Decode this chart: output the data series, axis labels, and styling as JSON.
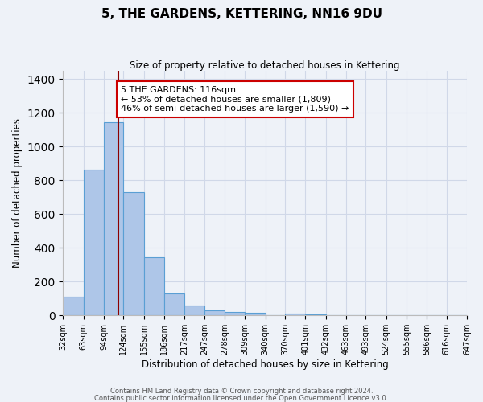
{
  "title": "5, THE GARDENS, KETTERING, NN16 9DU",
  "subtitle": "Size of property relative to detached houses in Kettering",
  "xlabel": "Distribution of detached houses by size in Kettering",
  "ylabel": "Number of detached properties",
  "bin_labels": [
    "32sqm",
    "63sqm",
    "94sqm",
    "124sqm",
    "155sqm",
    "186sqm",
    "217sqm",
    "247sqm",
    "278sqm",
    "309sqm",
    "340sqm",
    "370sqm",
    "401sqm",
    "432sqm",
    "463sqm",
    "493sqm",
    "524sqm",
    "555sqm",
    "586sqm",
    "616sqm",
    "647sqm"
  ],
  "bin_edges": [
    32,
    63,
    94,
    124,
    155,
    186,
    217,
    247,
    278,
    309,
    340,
    370,
    401,
    432,
    463,
    493,
    524,
    555,
    586,
    616,
    647
  ],
  "bar_heights": [
    110,
    865,
    1145,
    730,
    345,
    130,
    60,
    30,
    20,
    15,
    0,
    10,
    5,
    0,
    0,
    0,
    0,
    0,
    0,
    0
  ],
  "bar_color": "#aec6e8",
  "bar_edgecolor": "#5a9fd4",
  "bar_linewidth": 0.8,
  "grid_color": "#d0d8e8",
  "property_line_x": 116,
  "property_line_color": "#8b0000",
  "ylim": [
    0,
    1450
  ],
  "yticks": [
    0,
    200,
    400,
    600,
    800,
    1000,
    1200,
    1400
  ],
  "annotation_text": "5 THE GARDENS: 116sqm\n← 53% of detached houses are smaller (1,809)\n46% of semi-detached houses are larger (1,590) →",
  "annotation_box_facecolor": "white",
  "annotation_box_edgecolor": "#cc0000",
  "footer_line1": "Contains HM Land Registry data © Crown copyright and database right 2024.",
  "footer_line2": "Contains public sector information licensed under the Open Government Licence v3.0.",
  "background_color": "#eef2f8",
  "plot_bg_color": "#eef2f8"
}
